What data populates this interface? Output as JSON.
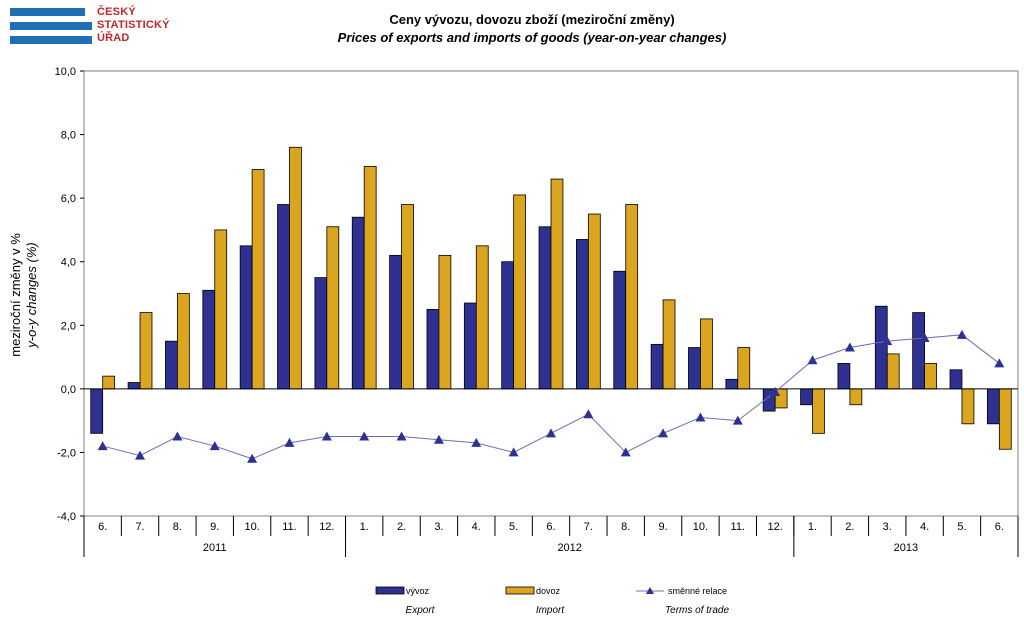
{
  "logo": {
    "line1": "ČESKÝ",
    "line2": "STATISTICKÝ",
    "line3": "ÚŘAD"
  },
  "title": "Ceny vývozu, dovozu zboží (meziroční změny)",
  "subtitle": "Prices of exports and imports of goods (year-on-year changes)",
  "colors": {
    "export": "#2e3192",
    "import": "#dba520",
    "terms": "#2e3192"
  },
  "chart_data": {
    "type": "bar",
    "ylabel_cz": "meziroční změny v %",
    "ylabel_en": "y-o-y changes (%)",
    "ylim": [
      -4.0,
      10.0
    ],
    "yticks": [
      "-4,0",
      "-2,0",
      "0,0",
      "2,0",
      "4,0",
      "6,0",
      "8,0",
      "10,0"
    ],
    "categories": [
      "6.",
      "7.",
      "8.",
      "9.",
      "10.",
      "11.",
      "12.",
      "1.",
      "2.",
      "3.",
      "4.",
      "5.",
      "6.",
      "7.",
      "8.",
      "9.",
      "10.",
      "11.",
      "12.",
      "1.",
      "2.",
      "3.",
      "4.",
      "5.",
      "6."
    ],
    "years": [
      {
        "label": "2011",
        "count": 7
      },
      {
        "label": "2012",
        "count": 12
      },
      {
        "label": "2013",
        "count": 6
      }
    ],
    "series": [
      {
        "name": "vývoz",
        "name_en": "Export",
        "kind": "bar",
        "values": [
          -1.4,
          0.2,
          1.5,
          3.1,
          4.5,
          5.8,
          3.5,
          5.4,
          4.2,
          2.5,
          2.7,
          4.0,
          5.1,
          4.7,
          3.7,
          1.4,
          1.3,
          0.3,
          -0.7,
          -0.5,
          0.8,
          2.6,
          2.4,
          0.6,
          -1.1
        ]
      },
      {
        "name": "dovoz",
        "name_en": "Import",
        "kind": "bar",
        "values": [
          0.4,
          2.4,
          3.0,
          5.0,
          6.9,
          7.6,
          5.1,
          7.0,
          5.8,
          4.2,
          4.5,
          6.1,
          6.6,
          5.5,
          5.8,
          2.8,
          2.2,
          1.3,
          -0.6,
          -1.4,
          -0.5,
          1.1,
          0.8,
          -1.1,
          -1.9
        ]
      },
      {
        "name": "směnné relace",
        "name_en": "Terms of trade",
        "kind": "line",
        "values": [
          -1.8,
          -2.1,
          -1.5,
          -1.8,
          -2.2,
          -1.7,
          -1.5,
          -1.5,
          -1.5,
          -1.6,
          -1.7,
          -2.0,
          -1.4,
          -0.8,
          -2.0,
          -1.4,
          -0.9,
          -1.0,
          -0.1,
          0.9,
          1.3,
          1.5,
          1.6,
          1.7,
          0.8
        ]
      }
    ],
    "legend_position": "bottom"
  }
}
